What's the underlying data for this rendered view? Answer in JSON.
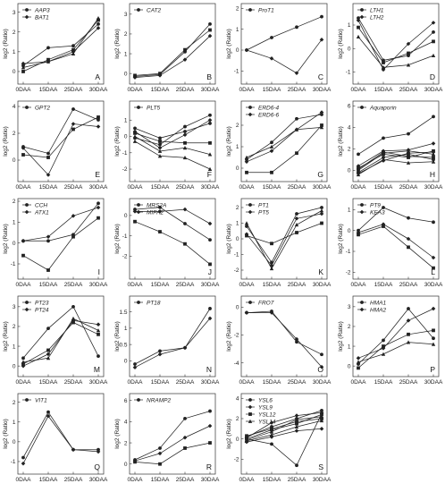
{
  "chart_data": [
    {
      "letter": "A",
      "type": "line",
      "categories": [
        "0DAA",
        "15DAA",
        "25DAA",
        "30DAA"
      ],
      "ylabel": "log2 (Ratio)",
      "ylim": [
        -0.5,
        3.3
      ],
      "yticks": [
        0,
        1,
        2,
        3
      ],
      "series": [
        {
          "name": "AAP3",
          "values": [
            0.3,
            1.2,
            1.3,
            2.4
          ]
        },
        {
          "name": "BAT1",
          "values": [
            0.4,
            0.5,
            1.0,
            2.2
          ]
        },
        {
          "name": "",
          "values": [
            0.0,
            0.6,
            1.1,
            2.6
          ]
        },
        {
          "name": "",
          "values": [
            0.2,
            0.5,
            0.9,
            2.7
          ]
        }
      ]
    },
    {
      "letter": "B",
      "type": "line",
      "categories": [
        "0DAA",
        "15DAA",
        "25DAA",
        "30DAA"
      ],
      "ylabel": "log2 (Ratio)",
      "ylim": [
        -0.4,
        3.4
      ],
      "yticks": [
        0,
        1,
        2,
        3
      ],
      "series": [
        {
          "name": "CAT2",
          "values": [
            -0.15,
            -0.05,
            1.1,
            2.5
          ]
        },
        {
          "name": "",
          "values": [
            -0.2,
            -0.1,
            0.7,
            1.9
          ]
        },
        {
          "name": "",
          "values": [
            -0.1,
            0.0,
            1.2,
            2.2
          ]
        }
      ]
    },
    {
      "letter": "C",
      "type": "line",
      "categories": [
        "0DAA",
        "15DAA",
        "25DAA",
        "30DAA"
      ],
      "ylabel": "log2 (Ratio)",
      "ylim": [
        -1.5,
        2.1
      ],
      "yticks": [
        -1,
        0,
        1,
        2
      ],
      "series": [
        {
          "name": "ProT1",
          "values": [
            0.0,
            0.6,
            1.1,
            1.6
          ]
        },
        {
          "name": "",
          "values": [
            0.0,
            -0.4,
            -1.1,
            0.5
          ]
        }
      ]
    },
    {
      "letter": "D",
      "type": "line",
      "categories": [
        "0DAA",
        "15DAA",
        "25DAA",
        "30DAA"
      ],
      "ylabel": "log2 (Ratio)",
      "ylim": [
        -1.4,
        1.8
      ],
      "yticks": [
        -1,
        0,
        1
      ],
      "series": [
        {
          "name": "LTH1",
          "values": [
            1.3,
            -0.5,
            -0.3,
            0.7
          ]
        },
        {
          "name": "LTH2",
          "values": [
            1.2,
            -0.9,
            0.2,
            1.1
          ]
        },
        {
          "name": "",
          "values": [
            0.9,
            -0.6,
            -0.2,
            0.3
          ]
        },
        {
          "name": "",
          "values": [
            0.5,
            -0.8,
            -0.7,
            -0.3
          ]
        }
      ]
    },
    {
      "letter": "E",
      "type": "line",
      "categories": [
        "0DAA",
        "15DAA",
        "25DAA",
        "30DAA"
      ],
      "ylabel": "log2 (Ratio)",
      "ylim": [
        -1.4,
        4.2
      ],
      "yticks": [
        0,
        2,
        4
      ],
      "series": [
        {
          "name": "GPT2",
          "values": [
            1.0,
            0.5,
            3.8,
            3.0
          ]
        },
        {
          "name": "",
          "values": [
            0.9,
            -1.1,
            2.7,
            2.5
          ]
        },
        {
          "name": "",
          "values": [
            0.4,
            0.2,
            2.3,
            3.2
          ]
        }
      ]
    },
    {
      "letter": "F",
      "type": "line",
      "categories": [
        "0DAA",
        "15DAA",
        "25DAA",
        "30DAA"
      ],
      "ylabel": "log2 (Ratio)",
      "ylim": [
        -2.6,
        2.0
      ],
      "yticks": [
        -2,
        -1,
        0,
        1
      ],
      "series": [
        {
          "name": "PLT5",
          "values": [
            0.5,
            -0.1,
            0.3,
            0.8
          ]
        },
        {
          "name": "",
          "values": [
            0.3,
            -0.7,
            0.1,
            1.0
          ]
        },
        {
          "name": "",
          "values": [
            0.2,
            -0.3,
            -0.4,
            -0.4
          ]
        },
        {
          "name": "",
          "values": [
            0.0,
            -0.9,
            -0.7,
            -1.1
          ]
        },
        {
          "name": "",
          "values": [
            -0.1,
            -0.5,
            0.6,
            1.3
          ]
        },
        {
          "name": "",
          "values": [
            -0.3,
            -1.2,
            -1.3,
            -2.0
          ]
        }
      ]
    },
    {
      "letter": "G",
      "type": "line",
      "categories": [
        "0DAA",
        "15DAA",
        "25DAA",
        "30DAA"
      ],
      "ylabel": "log2 (Ratio)",
      "ylim": [
        -0.5,
        3.0
      ],
      "yticks": [
        0,
        1,
        2
      ],
      "series": [
        {
          "name": "ERD6-4",
          "values": [
            0.4,
            1.2,
            2.3,
            2.5
          ]
        },
        {
          "name": "ERD6-6",
          "values": [
            0.3,
            0.8,
            1.8,
            2.6
          ]
        },
        {
          "name": "",
          "values": [
            -0.2,
            -0.2,
            0.7,
            2.0
          ]
        },
        {
          "name": "",
          "values": [
            0.5,
            1.0,
            1.8,
            1.9
          ]
        }
      ]
    },
    {
      "letter": "H",
      "type": "line",
      "categories": [
        "0DAA",
        "15DAA",
        "25DAA",
        "30DAA"
      ],
      "ylabel": "log2 (Ratio)",
      "ylim": [
        -0.8,
        6.2
      ],
      "yticks": [
        0,
        2,
        4,
        6
      ],
      "series": [
        {
          "name": "Aquaporin",
          "values": [
            1.5,
            3.0,
            3.4,
            5.0
          ]
        },
        {
          "name": "",
          "values": [
            0.4,
            1.8,
            1.9,
            2.5
          ]
        },
        {
          "name": "",
          "values": [
            0.2,
            1.5,
            1.2,
            1.8
          ]
        },
        {
          "name": "",
          "values": [
            0.0,
            1.6,
            1.8,
            1.5
          ]
        },
        {
          "name": "",
          "values": [
            -0.2,
            1.2,
            1.5,
            1.0
          ]
        },
        {
          "name": "",
          "values": [
            -0.4,
            1.0,
            0.7,
            0.8
          ]
        },
        {
          "name": "",
          "values": [
            0.1,
            1.7,
            1.3,
            1.2
          ]
        },
        {
          "name": "",
          "values": [
            -0.3,
            0.9,
            1.6,
            1.7
          ]
        }
      ]
    },
    {
      "letter": "I",
      "type": "line",
      "categories": [
        "0DAA",
        "15DAA",
        "25DAA",
        "30DAA"
      ],
      "ylabel": "log2 (Ratio)",
      "ylim": [
        -1.6,
        2.0
      ],
      "yticks": [
        -1,
        0,
        1,
        2
      ],
      "series": [
        {
          "name": "CCH",
          "values": [
            0.1,
            0.1,
            0.4,
            1.9
          ]
        },
        {
          "name": "ATX1",
          "values": [
            0.1,
            0.3,
            1.3,
            1.7
          ]
        },
        {
          "name": "",
          "values": [
            -0.6,
            -1.3,
            0.3,
            1.2
          ]
        }
      ]
    },
    {
      "letter": "J",
      "type": "line",
      "categories": [
        "0DAA",
        "15DAA",
        "25DAA",
        "30DAA"
      ],
      "ylabel": "log2 (Ratio)",
      "ylim": [
        -3.0,
        0.7
      ],
      "yticks": [
        -2,
        -1,
        0
      ],
      "series": [
        {
          "name": "MRS2A",
          "values": [
            0.3,
            0.4,
            -0.4,
            -1.2
          ]
        },
        {
          "name": "MIPA2",
          "values": [
            0.2,
            0.2,
            0.3,
            -0.4
          ]
        },
        {
          "name": "",
          "values": [
            -0.3,
            -0.8,
            -1.4,
            -2.4
          ]
        }
      ]
    },
    {
      "letter": "K",
      "type": "line",
      "categories": [
        "0DAA",
        "15DAA",
        "25DAA",
        "30DAA"
      ],
      "ylabel": "log2 (Ratio)",
      "ylim": [
        -2.4,
        2.4
      ],
      "yticks": [
        -2,
        -1,
        0,
        1,
        2
      ],
      "series": [
        {
          "name": "PT1",
          "values": [
            0.8,
            -1.5,
            1.6,
            2.0
          ]
        },
        {
          "name": "PT5",
          "values": [
            0.3,
            -1.7,
            1.3,
            1.6
          ]
        },
        {
          "name": "",
          "values": [
            0.2,
            -0.3,
            0.4,
            1.0
          ]
        },
        {
          "name": "",
          "values": [
            1.0,
            -1.9,
            0.9,
            1.8
          ]
        }
      ]
    },
    {
      "letter": "L",
      "type": "line",
      "categories": [
        "0DAA",
        "15DAA",
        "25DAA",
        "30DAA"
      ],
      "ylabel": "log2 (Ratio)",
      "ylim": [
        -2.2,
        1.4
      ],
      "yticks": [
        -2,
        -1,
        0,
        1
      ],
      "series": [
        {
          "name": "PT9",
          "values": [
            0.0,
            1.1,
            0.6,
            0.4
          ]
        },
        {
          "name": "KEA3",
          "values": [
            -0.1,
            0.3,
            -0.4,
            -1.3
          ]
        },
        {
          "name": "",
          "values": [
            -0.2,
            0.2,
            -0.8,
            -1.8
          ]
        }
      ]
    },
    {
      "letter": "M",
      "type": "line",
      "categories": [
        "0DAA",
        "15DAA",
        "25DAA",
        "30DAA"
      ],
      "ylabel": "log2 (Ratio)",
      "ylim": [
        -0.4,
        3.4
      ],
      "yticks": [
        0,
        1,
        2,
        3
      ],
      "series": [
        {
          "name": "PT23",
          "values": [
            0.4,
            1.9,
            3.0,
            0.5
          ]
        },
        {
          "name": "PT24",
          "values": [
            0.0,
            0.6,
            2.3,
            2.1
          ]
        },
        {
          "name": "",
          "values": [
            0.1,
            0.8,
            2.2,
            1.6
          ]
        },
        {
          "name": "",
          "values": [
            0.2,
            0.4,
            2.4,
            1.8
          ]
        }
      ]
    },
    {
      "letter": "N",
      "type": "line",
      "categories": [
        "0DAA",
        "15DAA",
        "25DAA",
        "30DAA"
      ],
      "ylabel": "log2 (Ratio)",
      "ylim": [
        -0.4,
        1.9
      ],
      "yticks": [
        0,
        0.5,
        1,
        1.5
      ],
      "series": [
        {
          "name": "PT18",
          "values": [
            -0.1,
            0.3,
            0.4,
            1.6
          ]
        },
        {
          "name": "",
          "values": [
            -0.2,
            0.2,
            0.4,
            1.3
          ]
        }
      ]
    },
    {
      "letter": "O",
      "type": "line",
      "categories": [
        "0DAA",
        "15DAA",
        "25DAA",
        "30DAA"
      ],
      "ylabel": "log2 (Ratio)",
      "ylim": [
        -4.8,
        0.6
      ],
      "yticks": [
        -4,
        -2,
        0
      ],
      "series": [
        {
          "name": "FRO7",
          "values": [
            -0.4,
            -0.3,
            -2.5,
            -3.4
          ]
        },
        {
          "name": "",
          "values": [
            -0.4,
            -0.4,
            -2.3,
            -4.3
          ]
        }
      ]
    },
    {
      "letter": "P",
      "type": "line",
      "categories": [
        "0DAA",
        "15DAA",
        "25DAA",
        "30DAA"
      ],
      "ylabel": "log2 (Ratio)",
      "ylim": [
        -0.4,
        3.4
      ],
      "yticks": [
        0,
        1,
        2,
        3
      ],
      "series": [
        {
          "name": "HMA1",
          "values": [
            0.1,
            1.3,
            2.9,
            1.4
          ]
        },
        {
          "name": "HMA2",
          "values": [
            0.4,
            0.9,
            2.3,
            2.9
          ]
        },
        {
          "name": "",
          "values": [
            -0.1,
            1.0,
            1.6,
            1.8
          ]
        },
        {
          "name": "",
          "values": [
            0.2,
            0.6,
            1.2,
            1.1
          ]
        }
      ]
    },
    {
      "letter": "Q",
      "type": "line",
      "categories": [
        "0DAA",
        "15DAA",
        "25DAA",
        "30DAA"
      ],
      "ylabel": "log2 (Ratio)",
      "ylim": [
        -1.5,
        2.3
      ],
      "yticks": [
        -1,
        0,
        1,
        2
      ],
      "series": [
        {
          "name": "VIT1",
          "values": [
            -0.8,
            1.5,
            -0.4,
            -0.4
          ]
        },
        {
          "name": "",
          "values": [
            -1.1,
            1.3,
            -0.4,
            -0.5
          ]
        }
      ]
    },
    {
      "letter": "R",
      "type": "line",
      "categories": [
        "0DAA",
        "15DAA",
        "25DAA",
        "30DAA"
      ],
      "ylabel": "log2 (Ratio)",
      "ylim": [
        -0.7,
        6.4
      ],
      "yticks": [
        0,
        2,
        4,
        6
      ],
      "series": [
        {
          "name": "NRAMP2",
          "values": [
            0.4,
            1.5,
            4.3,
            5.0
          ]
        },
        {
          "name": "",
          "values": [
            0.3,
            1.0,
            2.5,
            3.6
          ]
        },
        {
          "name": "",
          "values": [
            0.2,
            0.0,
            1.5,
            2.0
          ]
        }
      ]
    },
    {
      "letter": "S",
      "type": "line",
      "categories": [
        "0DAA",
        "15DAA",
        "25DAA",
        "30DAA"
      ],
      "ylabel": "log2 (Ratio)",
      "ylim": [
        -3.2,
        4.2
      ],
      "yticks": [
        -2,
        0,
        2,
        4
      ],
      "series": [
        {
          "name": "YSL6",
          "values": [
            0.2,
            1.2,
            2.0,
            2.8
          ]
        },
        {
          "name": "YSL9",
          "values": [
            0.1,
            1.6,
            2.3,
            2.6
          ]
        },
        {
          "name": "YSL12",
          "values": [
            0.0,
            0.9,
            1.5,
            2.4
          ]
        },
        {
          "name": "YSL14",
          "values": [
            -0.1,
            0.7,
            1.9,
            2.2
          ]
        },
        {
          "name": "",
          "values": [
            0.0,
            -0.5,
            -2.6,
            2.5
          ]
        },
        {
          "name": "",
          "values": [
            -0.2,
            0.4,
            1.2,
            1.8
          ]
        },
        {
          "name": "",
          "values": [
            0.3,
            1.0,
            1.7,
            2.0
          ]
        },
        {
          "name": "",
          "values": [
            -0.3,
            0.2,
            0.8,
            1.0
          ]
        }
      ]
    }
  ]
}
